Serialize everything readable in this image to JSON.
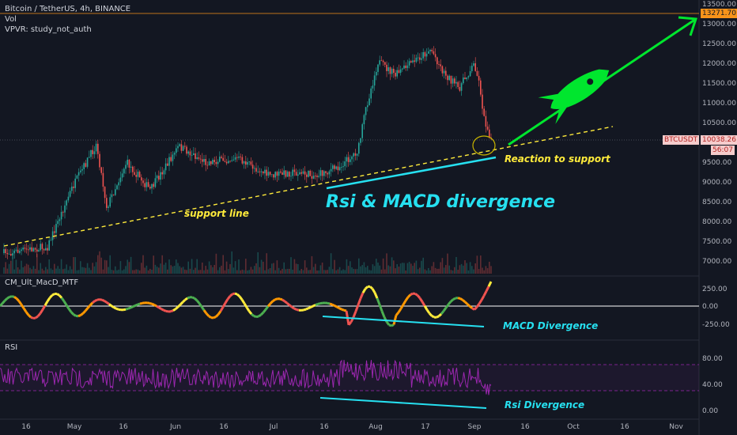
{
  "legend": {
    "symbol": "Bitcoin / TetherUS, 4h, BINANCE",
    "vol": "Vol",
    "vpvr": "VPVR: study_not_auth"
  },
  "panes": {
    "macd_title": "CM_Ult_MacD_MTF",
    "rsi_title": "RSI"
  },
  "price_axis": [
    "13500.00",
    "13000.00",
    "12500.00",
    "12000.00",
    "11500.00",
    "11000.00",
    "10500.00",
    "10000.00",
    "9500.00",
    "9000.00",
    "8500.00",
    "8000.00",
    "7500.00",
    "7000.00"
  ],
  "macd_axis": [
    "250.00",
    "0.00",
    "-250.00"
  ],
  "rsi_axis": [
    "80.00",
    "40.00",
    "0.00"
  ],
  "time_axis": [
    "16",
    "May",
    "16",
    "Jun",
    "16",
    "Jul",
    "16",
    "Aug",
    "17",
    "Sep",
    "16",
    "Oct",
    "16",
    "Nov"
  ],
  "tags": {
    "top_price": "13271.70",
    "symbol_tag": "BTCUSDT",
    "last_price": "10038.26",
    "countdown": "56:07"
  },
  "annotations": {
    "support": "support line",
    "divergence": "Rsi & MACD divergence",
    "reaction": "Reaction to support",
    "macd_div": "MACD Divergence",
    "rsi_div": "Rsi Divergence"
  },
  "colors": {
    "background": "#131722",
    "up": "#26a69a",
    "down": "#ef5350",
    "support_line": "#ffeb3b",
    "annotation": "#26e0f0",
    "rocket": "#00e62e",
    "rsi_line": "#9c27b0",
    "orange_tag": "#f7931a"
  },
  "icons": {
    "rocket": "rocket-icon"
  }
}
